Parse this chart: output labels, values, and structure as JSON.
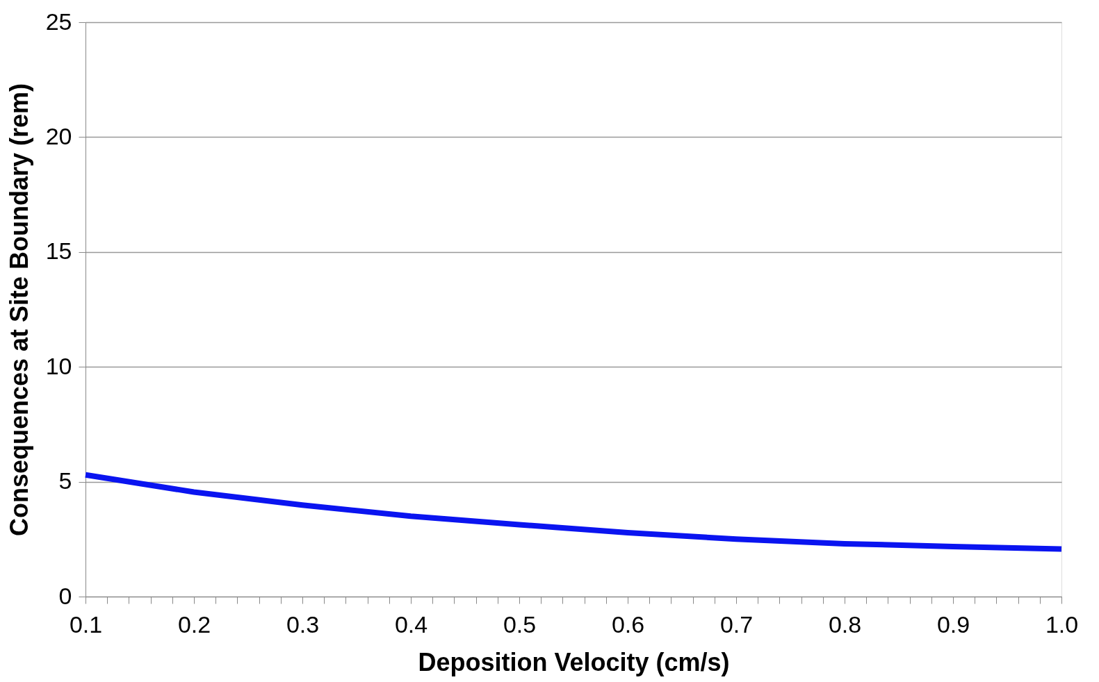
{
  "chart_data": {
    "type": "line",
    "xlabel": "Deposition Velocity (cm/s)",
    "ylabel": "Consequences at Site Boundary (rem)",
    "x": [
      0.1,
      0.2,
      0.3,
      0.4,
      0.5,
      0.6,
      0.7,
      0.8,
      0.9,
      1.0
    ],
    "series": [
      {
        "color": "#0a14f0",
        "values": [
          5.3,
          4.55,
          3.98,
          3.5,
          3.13,
          2.78,
          2.5,
          2.3,
          2.18,
          2.07
        ]
      }
    ],
    "xlim": [
      0.1,
      1.0
    ],
    "xticks": [
      0.1,
      {
        "value": 0.12,
        "label": null
      },
      {
        "value": 0.14,
        "label": null
      },
      {
        "value": 0.16,
        "label": null
      },
      {
        "value": 0.18,
        "label": null
      },
      0.2,
      {
        "value": 0.22,
        "label": null
      },
      {
        "value": 0.24,
        "label": null
      },
      {
        "value": 0.26,
        "label": null
      },
      {
        "value": 0.28,
        "label": null
      },
      0.3,
      {
        "value": 0.32,
        "label": null
      },
      {
        "value": 0.34,
        "label": null
      },
      {
        "value": 0.36,
        "label": null
      },
      {
        "value": 0.38,
        "label": null
      },
      0.4,
      {
        "value": 0.42,
        "label": null
      },
      {
        "value": 0.44,
        "label": null
      },
      {
        "value": 0.46,
        "label": null
      },
      {
        "value": 0.48,
        "label": null
      },
      0.5,
      {
        "value": 0.52,
        "label": null
      },
      {
        "value": 0.54,
        "label": null
      },
      {
        "value": 0.56,
        "label": null
      },
      {
        "value": 0.58,
        "label": null
      },
      0.6,
      {
        "value": 0.62,
        "label": null
      },
      {
        "value": 0.64,
        "label": null
      },
      {
        "value": 0.66,
        "label": null
      },
      {
        "value": 0.68,
        "label": null
      },
      0.7,
      {
        "value": 0.72,
        "label": null
      },
      {
        "value": 0.74,
        "label": null
      },
      {
        "value": 0.76,
        "label": null
      },
      {
        "value": 0.78,
        "label": null
      },
      0.8,
      {
        "value": 0.82,
        "label": null
      },
      {
        "value": 0.84,
        "label": null
      },
      {
        "value": 0.86,
        "label": null
      },
      {
        "value": 0.88,
        "label": null
      },
      0.9,
      {
        "value": 0.92,
        "label": null
      },
      {
        "value": 0.94,
        "label": null
      },
      {
        "value": 0.96,
        "label": null
      },
      {
        "value": 0.98,
        "label": null
      },
      {
        "value": 1.0,
        "label": "1.0"
      }
    ],
    "ylim": [
      0,
      25
    ],
    "yticks": [
      0,
      5,
      10,
      15,
      20,
      25
    ],
    "grid": "y",
    "legend": false,
    "marker": "none",
    "line_style": "solid"
  }
}
